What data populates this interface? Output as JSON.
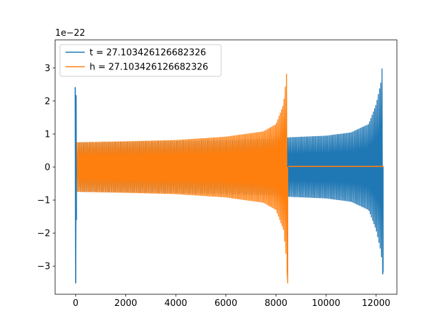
{
  "chart_data": {
    "type": "line",
    "title": "",
    "xlabel": "",
    "ylabel": "",
    "offset_text": "1e−22",
    "xlim": [
      -820,
      12830
    ],
    "ylim": [
      -3.85,
      3.85
    ],
    "x_ticks": [
      0,
      2000,
      4000,
      6000,
      8000,
      10000,
      12000
    ],
    "x_tick_labels": [
      "0",
      "2000",
      "4000",
      "6000",
      "8000",
      "10000",
      "12000"
    ],
    "y_ticks": [
      -3,
      -2,
      -1,
      0,
      1,
      2,
      3
    ],
    "y_tick_labels": [
      "−3",
      "−2",
      "−1",
      "0",
      "1",
      "2",
      "3"
    ],
    "grid": false,
    "legend_placement": "upper-left",
    "series": [
      {
        "name": "t = 27.103426126682326",
        "color": "#1f77b4",
        "x_range": [
          0,
          12300
        ],
        "initial_transient": {
          "x": 0,
          "min": -3.52,
          "max": 2.42
        },
        "envelope": [
          {
            "x": 100,
            "amp": 0.75
          },
          {
            "x": 2000,
            "amp": 0.77
          },
          {
            "x": 4000,
            "amp": 0.79
          },
          {
            "x": 6000,
            "amp": 0.82
          },
          {
            "x": 8000,
            "amp": 0.86
          },
          {
            "x": 8500,
            "amp": 0.9
          },
          {
            "x": 10000,
            "amp": 0.95
          },
          {
            "x": 11000,
            "amp": 1.05
          },
          {
            "x": 11700,
            "amp": 1.3
          },
          {
            "x": 12000,
            "amp": 1.9
          },
          {
            "x": 12200,
            "amp": 2.6
          },
          {
            "x": 12280,
            "amp": 3.45
          }
        ],
        "end_min": -3.15
      },
      {
        "name": "h = 27.103426126682326",
        "color": "#ff7f0e",
        "x_range": [
          0,
          12300
        ],
        "envelope": [
          {
            "x": 50,
            "amp": 0.75
          },
          {
            "x": 2000,
            "amp": 0.78
          },
          {
            "x": 4000,
            "amp": 0.82
          },
          {
            "x": 6000,
            "amp": 0.92
          },
          {
            "x": 7500,
            "amp": 1.08
          },
          {
            "x": 8000,
            "amp": 1.3
          },
          {
            "x": 8300,
            "amp": 1.9
          },
          {
            "x": 8420,
            "amp": 2.8
          },
          {
            "x": 8470,
            "amp": 3.45
          }
        ],
        "end_min": -3.52,
        "flat_after": {
          "x_start": 8500,
          "x_end": 12300,
          "value": 0.02
        }
      }
    ]
  }
}
